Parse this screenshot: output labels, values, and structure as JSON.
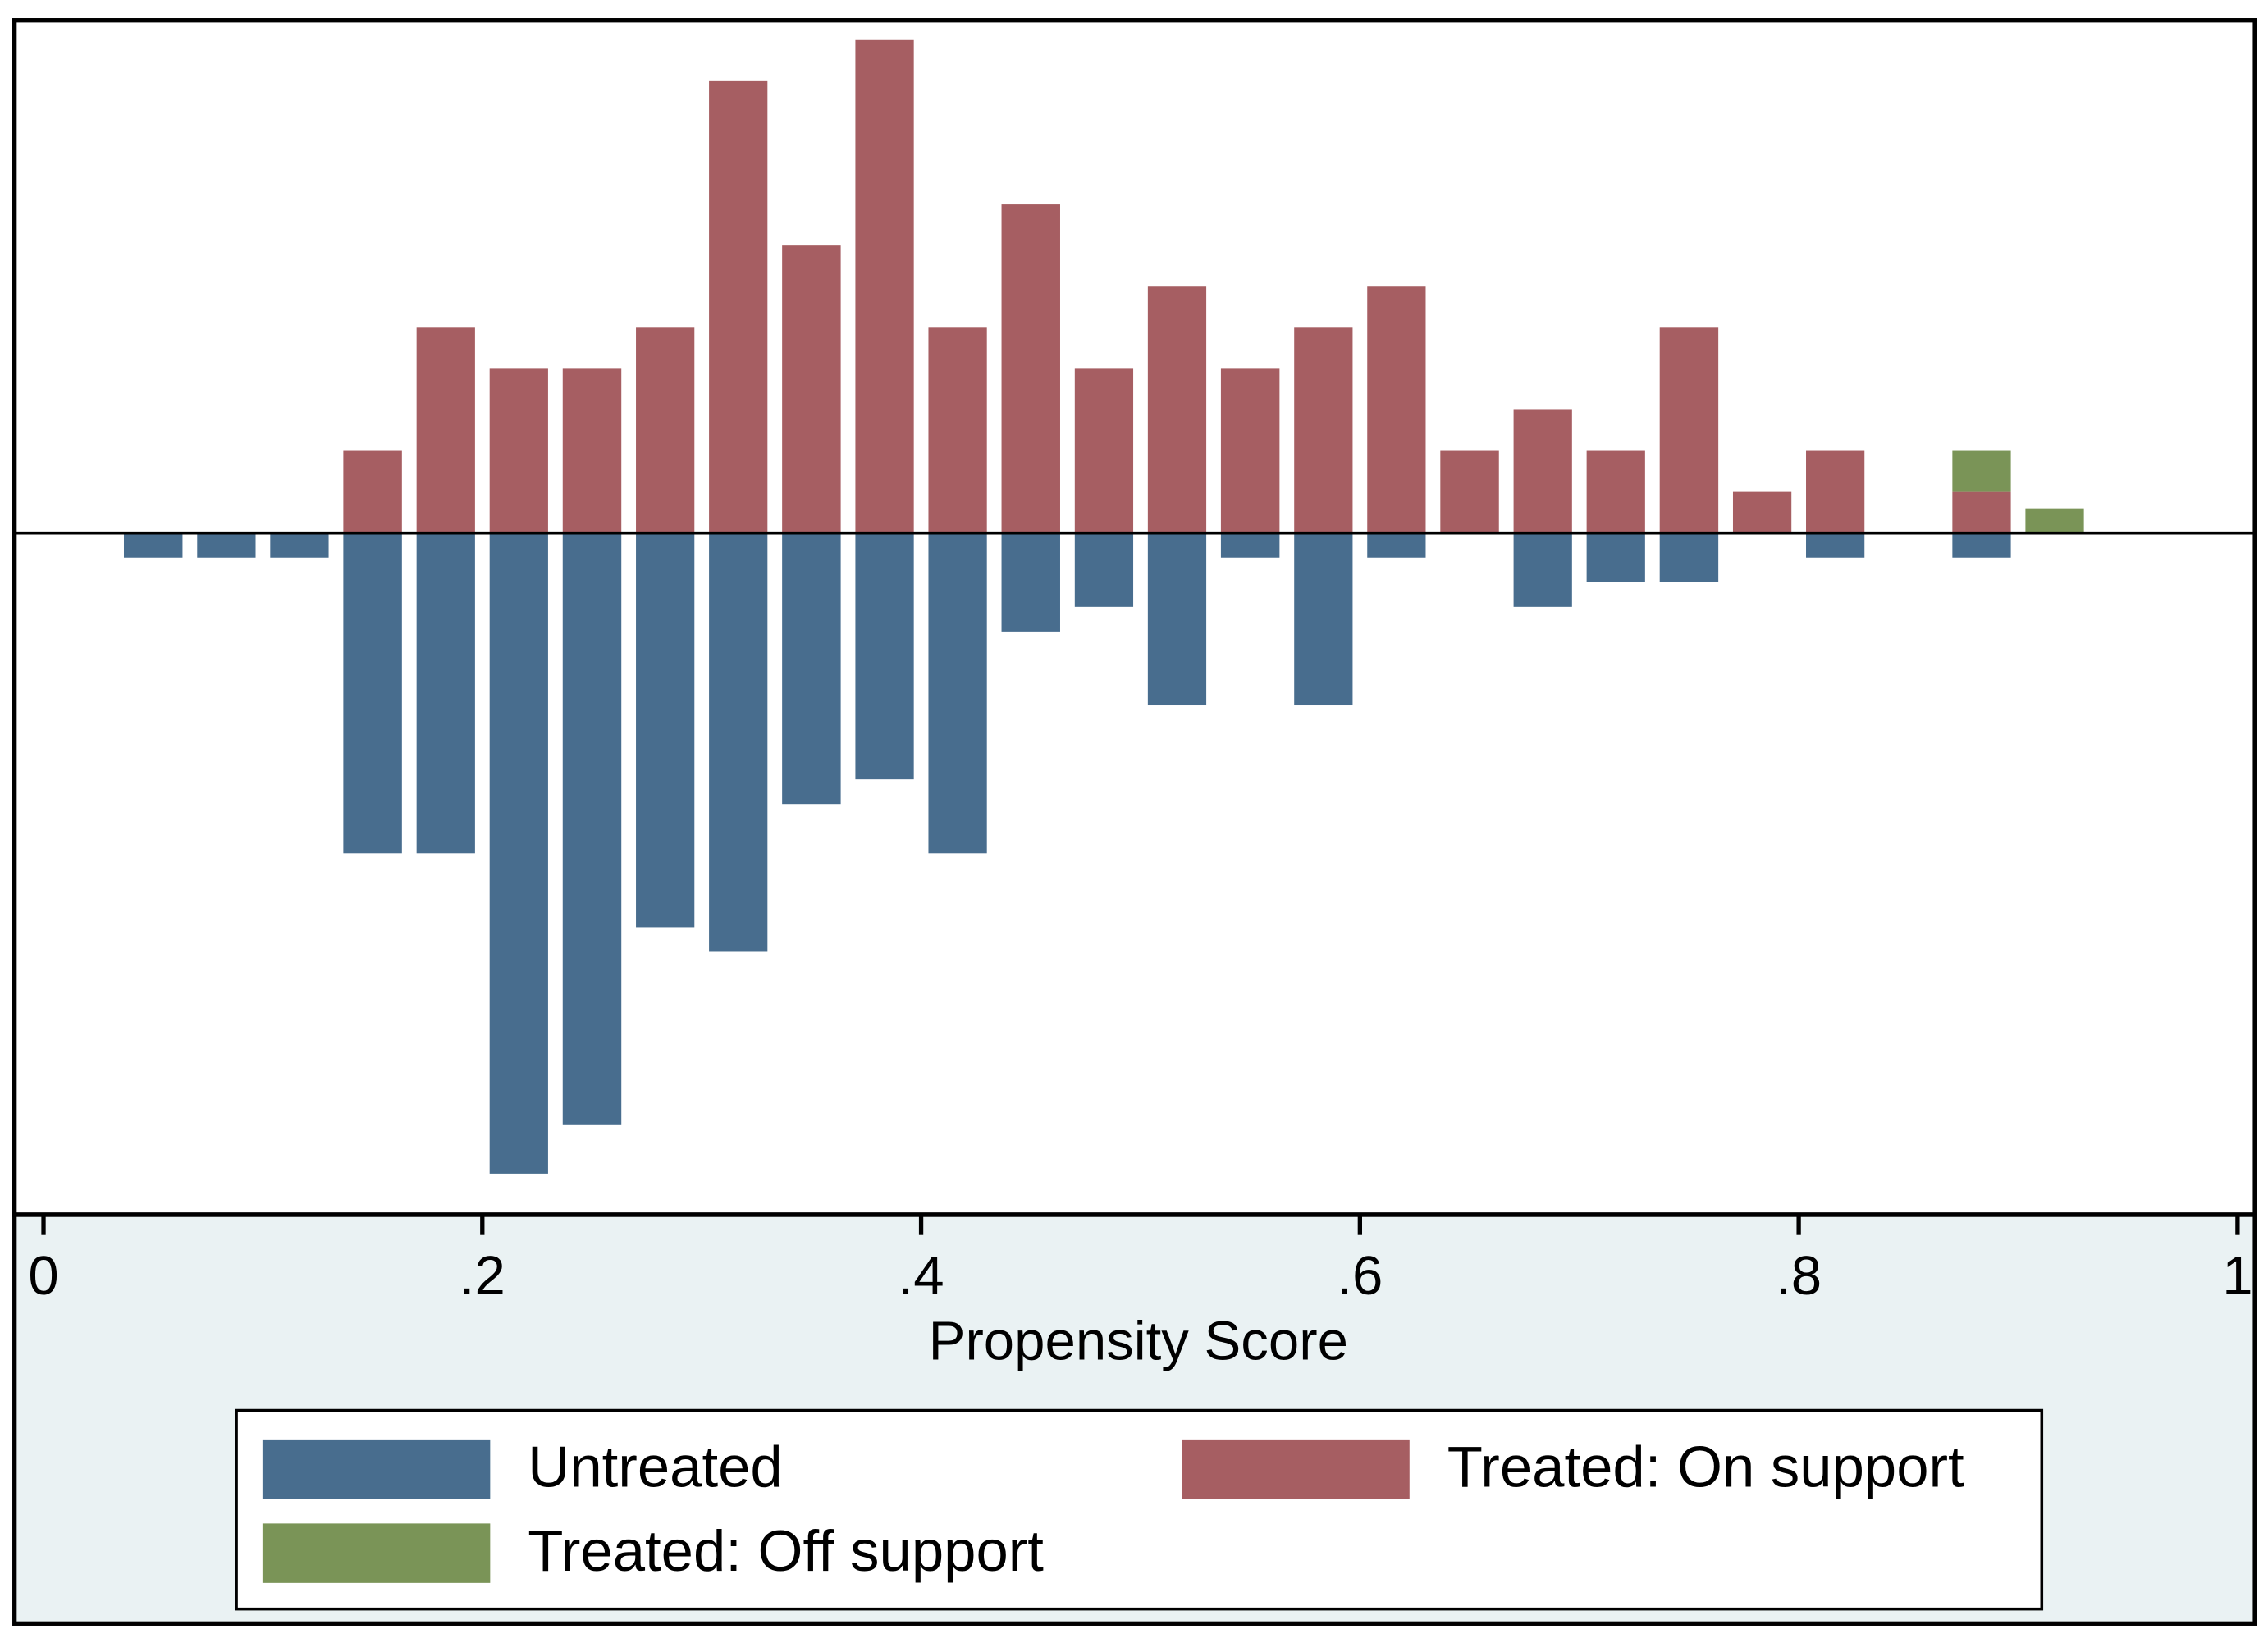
{
  "chart_data": {
    "type": "histogram",
    "xlabel": "Propensity Score",
    "bins": [
      0.0333,
      0.0667,
      0.1,
      0.1333,
      0.1667,
      0.2,
      0.2333,
      0.2667,
      0.3,
      0.3333,
      0.3667,
      0.4,
      0.4333,
      0.4667,
      0.5,
      0.5333,
      0.5667,
      0.6,
      0.6333,
      0.6667,
      0.7,
      0.7333,
      0.7667,
      0.8,
      0.8333,
      0.8667,
      0.9,
      0.9333
    ],
    "series": [
      {
        "name": "Untreated",
        "color": "#486d8e",
        "values": [
          -3,
          -3,
          -3,
          -39,
          -39,
          -78,
          -72,
          -48,
          -51,
          -33,
          -30,
          -39,
          -12,
          -9,
          -21,
          -3,
          -21,
          -3,
          0,
          -9,
          -6,
          -6,
          0,
          -3,
          0,
          -3,
          0
        ]
      },
      {
        "name": "Treated: On support",
        "color": "#a65e62",
        "values": [
          0,
          0,
          0,
          10,
          25,
          20,
          20,
          25,
          55,
          35,
          60,
          25,
          40,
          20,
          30,
          20,
          25,
          30,
          10,
          15,
          10,
          25,
          5,
          10,
          0,
          5,
          0
        ]
      },
      {
        "name": "Treated: Off support",
        "color": "#7a9457",
        "values": [
          0,
          0,
          0,
          0,
          0,
          0,
          0,
          0,
          0,
          0,
          0,
          0,
          0,
          0,
          0,
          0,
          0,
          0,
          0,
          0,
          0,
          0,
          0,
          0,
          0,
          5,
          3
        ]
      }
    ],
    "xlim": [
      0,
      1
    ],
    "xticks": [
      0,
      {
        "value": 0.2,
        "label": ".2"
      },
      {
        "value": 0.4,
        "label": ".4"
      },
      {
        "value": 0.6,
        "label": ".6"
      },
      {
        "value": 0.8,
        "label": ".8"
      },
      1
    ],
    "ylim": [
      -83,
      62.4
    ],
    "legend": "bottom"
  }
}
